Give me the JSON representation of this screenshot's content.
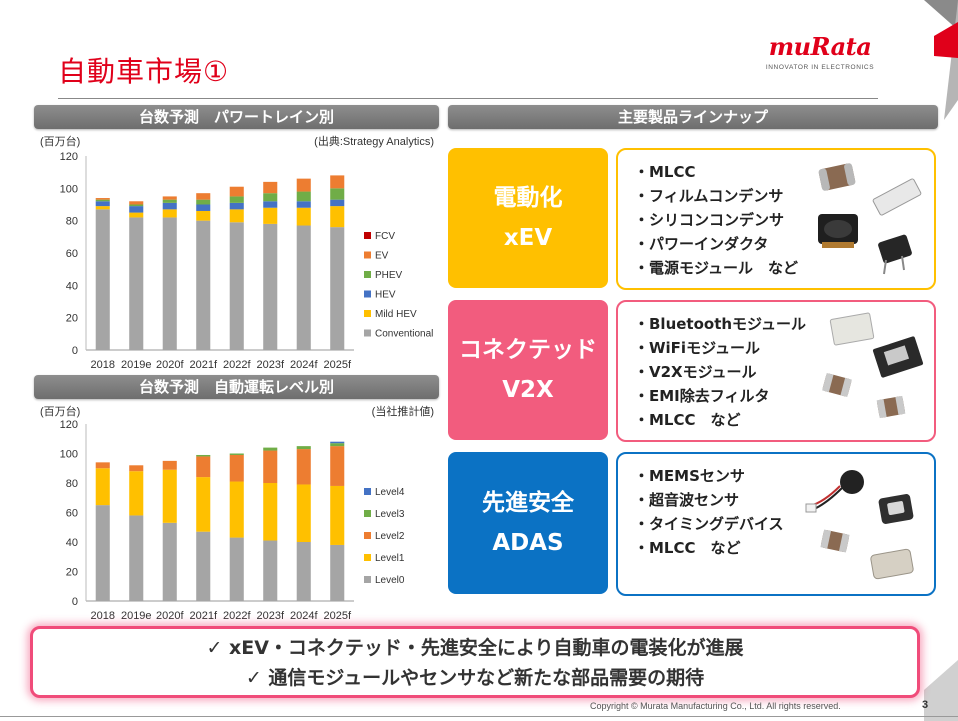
{
  "slide": {
    "title": "自動車市場①",
    "logo": {
      "word": "muRata",
      "tagline": "INNOVATOR IN ELECTRONICS"
    },
    "footer": "Copyright © Murata Manufacturing Co., Ltd. All rights reserved.",
    "page_number": "3",
    "brand_red": "#e0001a"
  },
  "sections": {
    "chart1_header": "台数予測　パワートレイン別",
    "chart2_header": "台数予測　自動運転レベル別",
    "products_header": "主要製品ラインナップ"
  },
  "chart1_notes": {
    "unit": "(百万台)",
    "source": "(出典:Strategy Analytics)"
  },
  "chart2_notes": {
    "unit": "(百万台)",
    "source": "(当社推計値)"
  },
  "chart_data": [
    {
      "type": "bar",
      "stacked": true,
      "categories": [
        "2018",
        "2019e",
        "2020f",
        "2021f",
        "2022f",
        "2023f",
        "2024f",
        "2025f"
      ],
      "ylim": [
        0,
        120
      ],
      "yticks": [
        0,
        20,
        40,
        60,
        80,
        100,
        120
      ],
      "legend_position": "right",
      "series": [
        {
          "name": "Conventional",
          "color": "#a5a5a5",
          "values": [
            87,
            82,
            82,
            80,
            79,
            78,
            77,
            76
          ]
        },
        {
          "name": "Mild HEV",
          "color": "#ffc000",
          "values": [
            2,
            3,
            5,
            6,
            8,
            10,
            11,
            13
          ]
        },
        {
          "name": "HEV",
          "color": "#4472c4",
          "values": [
            3,
            4,
            4,
            4,
            4,
            4,
            4,
            4
          ]
        },
        {
          "name": "PHEV",
          "color": "#70ad47",
          "values": [
            1,
            1,
            2,
            3,
            4,
            5,
            6,
            7
          ]
        },
        {
          "name": "EV",
          "color": "#ed7d31",
          "values": [
            1,
            2,
            2,
            4,
            6,
            7,
            8,
            8
          ]
        },
        {
          "name": "FCV",
          "color": "#c00000",
          "values": [
            0,
            0,
            0,
            0,
            0,
            0,
            0,
            0
          ]
        }
      ]
    },
    {
      "type": "bar",
      "stacked": true,
      "categories": [
        "2018",
        "2019e",
        "2020f",
        "2021f",
        "2022f",
        "2023f",
        "2024f",
        "2025f"
      ],
      "ylim": [
        0,
        120
      ],
      "yticks": [
        0,
        20,
        40,
        60,
        80,
        100,
        120
      ],
      "legend_position": "right",
      "series": [
        {
          "name": "Level0",
          "color": "#a5a5a5",
          "values": [
            65,
            58,
            53,
            47,
            43,
            41,
            40,
            38
          ]
        },
        {
          "name": "Level1",
          "color": "#ffc000",
          "values": [
            25,
            30,
            36,
            37,
            38,
            39,
            39,
            40
          ]
        },
        {
          "name": "Level2",
          "color": "#ed7d31",
          "values": [
            4,
            4,
            6,
            14,
            18,
            22,
            24,
            27
          ]
        },
        {
          "name": "Level3",
          "color": "#70ad47",
          "values": [
            0,
            0,
            0,
            1,
            1,
            2,
            2,
            2
          ]
        },
        {
          "name": "Level4",
          "color": "#4472c4",
          "values": [
            0,
            0,
            0,
            0,
            0,
            0,
            0,
            1
          ]
        }
      ]
    }
  ],
  "categories": [
    {
      "line1": "電動化",
      "line2": "xEV",
      "color": "#ffc000",
      "items": [
        "・MLCC",
        "・フィルムコンデンサ",
        "・シリコンコンデンサ",
        "・パワーインダクタ",
        "・電源モジュール　など"
      ]
    },
    {
      "line1": "コネクテッド",
      "line2": "V2X",
      "color": "#f25c7e",
      "items": [
        "・Bluetoothモジュール",
        "・WiFiモジュール",
        "・V2Xモジュール",
        "・EMI除去フィルタ",
        "・MLCC　など"
      ]
    },
    {
      "line1": "先進安全",
      "line2": "ADAS",
      "color": "#0b72c4",
      "items": [
        "・MEMSセンサ",
        "・超音波センサ",
        "・タイミングデバイス",
        "・MLCC　など"
      ]
    }
  ],
  "callout": {
    "line1": "✓ xEV・コネクテッド・先進安全により自動車の電装化が進展",
    "line2": "✓ 通信モジュールやセンサなど新たな部品需要の期待"
  }
}
